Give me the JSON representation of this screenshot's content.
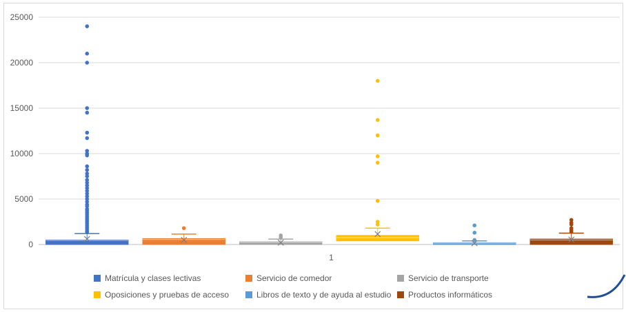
{
  "chart_data": {
    "type": "boxplot",
    "categories": [
      "1"
    ],
    "ylim": [
      0,
      25000
    ],
    "yticks": [
      0,
      5000,
      10000,
      15000,
      20000,
      25000
    ],
    "grid": true,
    "legend_position": "bottom",
    "series": [
      {
        "name": "Matrícula y clases lectivas",
        "color": "#4472C4",
        "q1": 0,
        "q3": 500,
        "median": 450,
        "mean": 600,
        "whisker_low": 0,
        "whisker_high": 1200,
        "outliers": [
          24000,
          21000,
          20000,
          15000,
          14500,
          12300,
          11700,
          10300,
          10000,
          9800,
          8600,
          8200,
          7800,
          7500,
          7100,
          6800,
          6500,
          6200,
          5900,
          5600,
          5300,
          5000,
          4700,
          4400,
          4200,
          3900,
          3700,
          3500,
          3300,
          3100,
          2900,
          2700,
          2500,
          2300,
          2100,
          1900,
          1700,
          1500,
          1350
        ]
      },
      {
        "name": "Servicio de comedor",
        "color": "#ED7D31",
        "q1": 0,
        "q3": 650,
        "median": 550,
        "mean": 500,
        "whisker_low": 0,
        "whisker_high": 1150,
        "outliers": [
          1800
        ]
      },
      {
        "name": "Servicio de transporte",
        "color": "#A5A5A5",
        "q1": 0,
        "q3": 300,
        "median": 250,
        "mean": 200,
        "whisker_low": 0,
        "whisker_high": 600,
        "outliers": [
          1000,
          800
        ]
      },
      {
        "name": "Oposiciones y pruebas de acceso",
        "color": "#FFC000",
        "q1": 400,
        "q3": 1000,
        "median": 750,
        "mean": 1150,
        "whisker_low": 0,
        "whisker_high": 1800,
        "outliers": [
          18000,
          13700,
          12000,
          9700,
          9000,
          4800,
          2500,
          2200
        ]
      },
      {
        "name": "Libros de texto y de ayuda al estudio",
        "color": "#5B9BD5",
        "q1": 0,
        "q3": 200,
        "median": 150,
        "mean": 150,
        "whisker_low": 0,
        "whisker_high": 400,
        "outliers": [
          2100,
          1300,
          500
        ]
      },
      {
        "name": "Productos informáticos",
        "color": "#9E480E",
        "q1": 0,
        "q3": 600,
        "median": 500,
        "mean": 550,
        "whisker_low": 0,
        "whisker_high": 1250,
        "outliers": [
          2700,
          2400,
          2200,
          1800,
          1600,
          1400
        ]
      }
    ]
  }
}
